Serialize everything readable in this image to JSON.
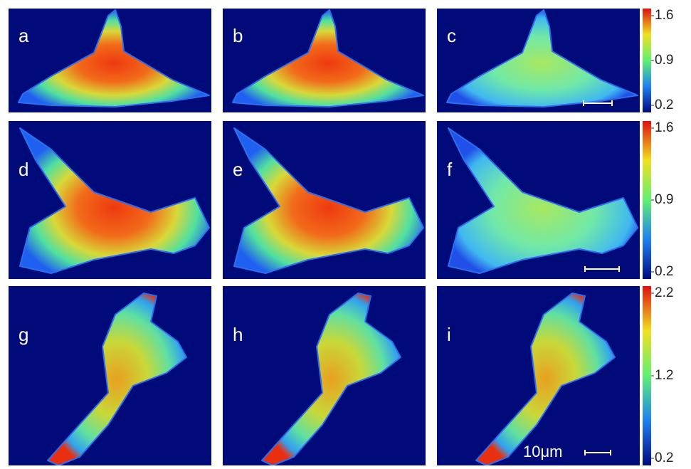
{
  "panels": [
    {
      "label": "a"
    },
    {
      "label": "b"
    },
    {
      "label": "c"
    },
    {
      "label": "d"
    },
    {
      "label": "e"
    },
    {
      "label": "f"
    },
    {
      "label": "g"
    },
    {
      "label": "h"
    },
    {
      "label": "i"
    }
  ],
  "colorbars": [
    {
      "ticks": [
        1.6,
        0.9,
        0.2
      ]
    },
    {
      "ticks": [
        1.6,
        0.9,
        0.2
      ]
    },
    {
      "ticks": [
        2.2,
        1.2,
        0.2
      ]
    }
  ],
  "scale_bar_label": "10μm"
}
